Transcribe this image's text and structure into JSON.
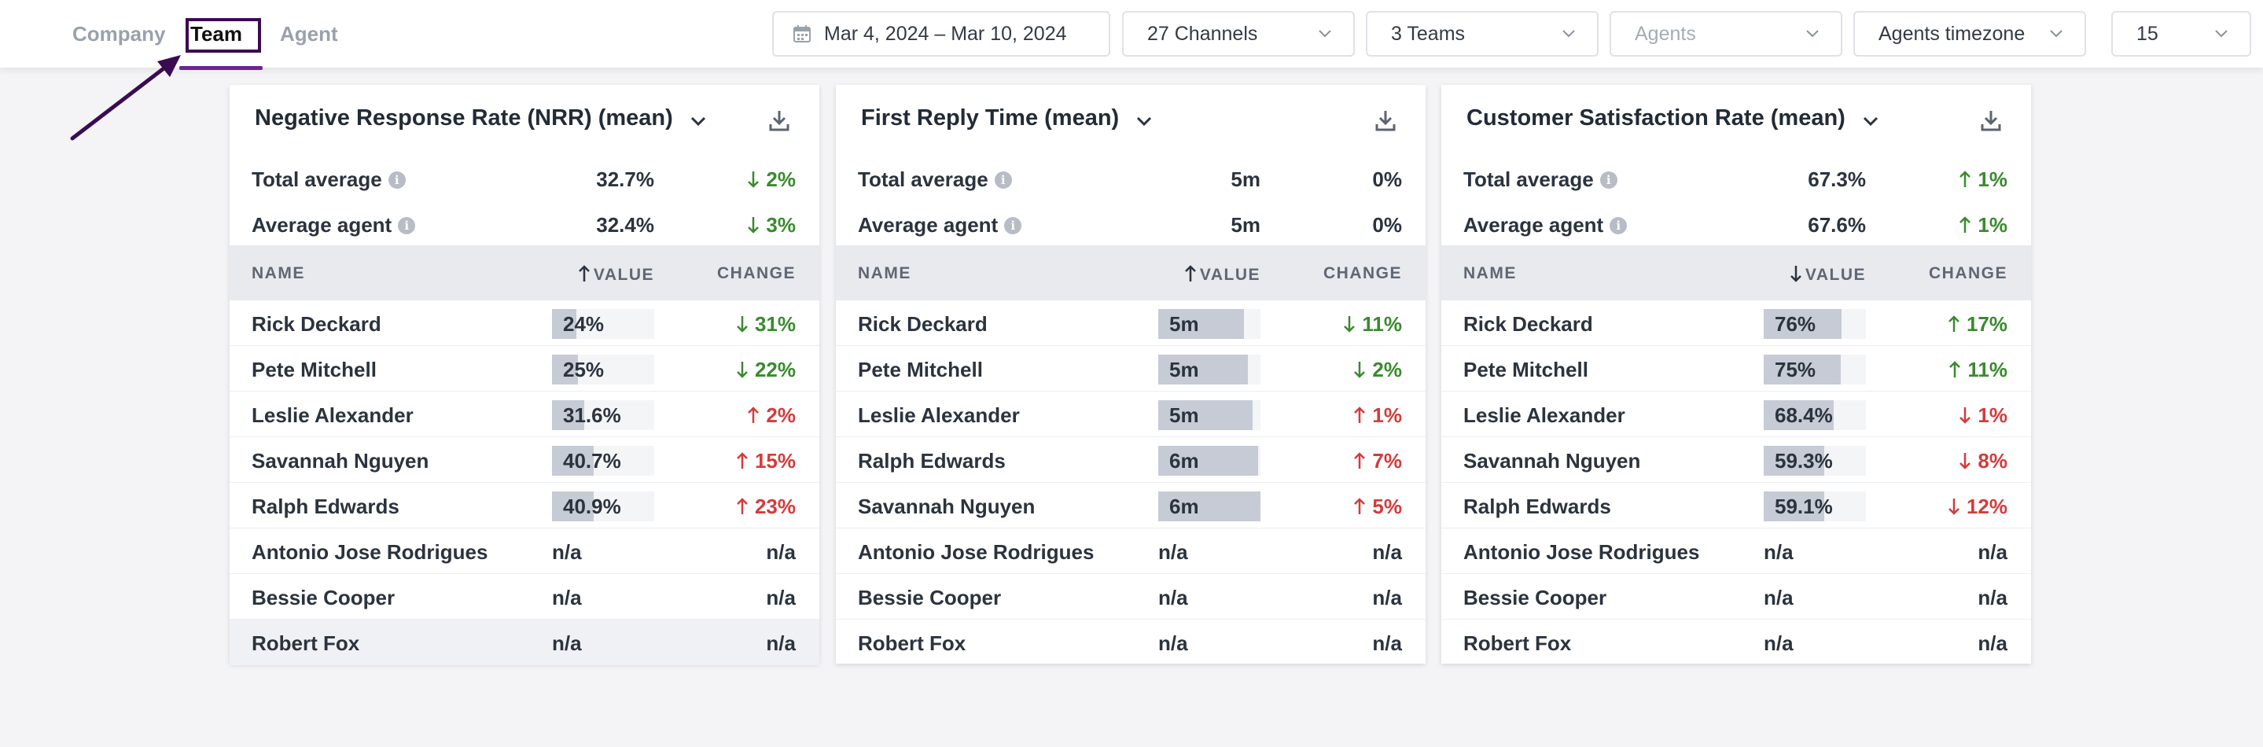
{
  "nav": {
    "tabs": [
      {
        "label": "Company"
      },
      {
        "label": "Team"
      },
      {
        "label": "Agent"
      }
    ],
    "active_tab": "Team"
  },
  "filters": {
    "date_range": "Mar 4, 2024 – Mar 10, 2024",
    "channels": "27 Channels",
    "teams": "3 Teams",
    "agents_placeholder": "Agents",
    "timezone": "Agents timezone",
    "page_size": "15"
  },
  "colors": {
    "accent": "#3b0b52",
    "tab_underline": "#6b2592",
    "positive": "#3a8a2e",
    "negative": "#d43b3b"
  },
  "table_labels": {
    "name": "NAME",
    "value": "VALUE",
    "change": "CHANGE",
    "total_average": "Total average",
    "average_agent": "Average agent"
  },
  "cards": [
    {
      "title": "Negative Response Rate (NRR) (mean)",
      "sort_direction": "up",
      "total_average": {
        "value": "32.7%",
        "change": "2%",
        "direction": "down",
        "tone": "good"
      },
      "average_agent": {
        "value": "32.4%",
        "change": "3%",
        "direction": "down",
        "tone": "good"
      },
      "rows": [
        {
          "name": "Rick Deckard",
          "value": "24%",
          "fill": 0.24,
          "change": "31%",
          "direction": "down",
          "tone": "good"
        },
        {
          "name": "Pete Mitchell",
          "value": "25%",
          "fill": 0.25,
          "change": "22%",
          "direction": "down",
          "tone": "good"
        },
        {
          "name": "Leslie Alexander",
          "value": "31.6%",
          "fill": 0.316,
          "change": "2%",
          "direction": "up",
          "tone": "bad"
        },
        {
          "name": "Savannah Nguyen",
          "value": "40.7%",
          "fill": 0.407,
          "change": "15%",
          "direction": "up",
          "tone": "bad"
        },
        {
          "name": "Ralph Edwards",
          "value": "40.9%",
          "fill": 0.409,
          "change": "23%",
          "direction": "up",
          "tone": "bad"
        },
        {
          "name": "Antonio Jose Rodrigues",
          "value": "n/a",
          "change": "n/a",
          "direction": "none",
          "tone": "neutral"
        },
        {
          "name": "Bessie Cooper",
          "value": "n/a",
          "change": "n/a",
          "direction": "none",
          "tone": "neutral"
        },
        {
          "name": "Robert Fox",
          "value": "n/a",
          "change": "n/a",
          "direction": "none",
          "tone": "neutral"
        }
      ]
    },
    {
      "title": "First Reply Time (mean)",
      "sort_direction": "up",
      "total_average": {
        "value": "5m",
        "change": "0%",
        "direction": "none",
        "tone": "neutral"
      },
      "average_agent": {
        "value": "5m",
        "change": "0%",
        "direction": "none",
        "tone": "neutral"
      },
      "rows": [
        {
          "name": "Rick Deckard",
          "value": "5m",
          "fill": 0.84,
          "change": "11%",
          "direction": "down",
          "tone": "good"
        },
        {
          "name": "Pete Mitchell",
          "value": "5m",
          "fill": 0.88,
          "change": "2%",
          "direction": "down",
          "tone": "good"
        },
        {
          "name": "Leslie Alexander",
          "value": "5m",
          "fill": 0.92,
          "change": "1%",
          "direction": "up",
          "tone": "bad"
        },
        {
          "name": "Ralph Edwards",
          "value": "6m",
          "fill": 0.98,
          "change": "7%",
          "direction": "up",
          "tone": "bad"
        },
        {
          "name": "Savannah Nguyen",
          "value": "6m",
          "fill": 1.0,
          "change": "5%",
          "direction": "up",
          "tone": "bad"
        },
        {
          "name": "Antonio Jose Rodrigues",
          "value": "n/a",
          "change": "n/a",
          "direction": "none",
          "tone": "neutral"
        },
        {
          "name": "Bessie Cooper",
          "value": "n/a",
          "change": "n/a",
          "direction": "none",
          "tone": "neutral"
        },
        {
          "name": "Robert Fox",
          "value": "n/a",
          "change": "n/a",
          "direction": "none",
          "tone": "neutral"
        }
      ]
    },
    {
      "title": "Customer Satisfaction Rate (mean)",
      "sort_direction": "down",
      "total_average": {
        "value": "67.3%",
        "change": "1%",
        "direction": "up",
        "tone": "good"
      },
      "average_agent": {
        "value": "67.6%",
        "change": "1%",
        "direction": "up",
        "tone": "good"
      },
      "rows": [
        {
          "name": "Rick Deckard",
          "value": "76%",
          "fill": 0.76,
          "change": "17%",
          "direction": "up",
          "tone": "good"
        },
        {
          "name": "Pete Mitchell",
          "value": "75%",
          "fill": 0.75,
          "change": "11%",
          "direction": "up",
          "tone": "good"
        },
        {
          "name": "Leslie Alexander",
          "value": "68.4%",
          "fill": 0.684,
          "change": "1%",
          "direction": "down",
          "tone": "bad"
        },
        {
          "name": "Savannah Nguyen",
          "value": "59.3%",
          "fill": 0.593,
          "change": "8%",
          "direction": "down",
          "tone": "bad"
        },
        {
          "name": "Ralph Edwards",
          "value": "59.1%",
          "fill": 0.591,
          "change": "12%",
          "direction": "down",
          "tone": "bad"
        },
        {
          "name": "Antonio Jose Rodrigues",
          "value": "n/a",
          "change": "n/a",
          "direction": "none",
          "tone": "neutral"
        },
        {
          "name": "Bessie Cooper",
          "value": "n/a",
          "change": "n/a",
          "direction": "none",
          "tone": "neutral"
        },
        {
          "name": "Robert Fox",
          "value": "n/a",
          "change": "n/a",
          "direction": "none",
          "tone": "neutral"
        }
      ]
    }
  ]
}
